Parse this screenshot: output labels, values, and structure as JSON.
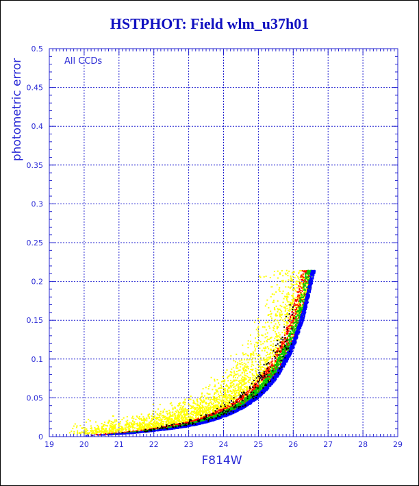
{
  "chart_data": {
    "type": "scatter",
    "title": "HSTPHOT: Field wlm_u37h01",
    "xlabel": "F814W",
    "ylabel": "photometric error",
    "annotation": "All CCDs",
    "xlim": [
      19,
      29
    ],
    "ylim": [
      0,
      0.5
    ],
    "x_ticks": [
      "19",
      "20",
      "21",
      "22",
      "23",
      "24",
      "25",
      "26",
      "27",
      "28",
      "29"
    ],
    "y_ticks": [
      "0",
      "0.05",
      "0.1",
      "0.15",
      "0.2",
      "0.25",
      "0.3",
      "0.35",
      "0.4",
      "0.45",
      "0.5"
    ],
    "grid": true,
    "error_cap": 0.215,
    "series": [
      {
        "color": "#ffff00",
        "x_range": [
          19.5,
          26.5
        ],
        "count": 3200
      },
      {
        "color": "#ff0000",
        "x_range": [
          20.0,
          26.5
        ],
        "count": 1500
      },
      {
        "color": "#00cc00",
        "x_range": [
          20.5,
          26.6
        ],
        "count": 1500
      },
      {
        "color": "#0000ff",
        "x_range": [
          20.0,
          26.6
        ],
        "count": 2400
      },
      {
        "color": "#000000",
        "x_range": [
          21.0,
          26.0
        ],
        "count": 250
      }
    ],
    "envelope": {
      "x": [
        20,
        21,
        22,
        23,
        23.5,
        24,
        24.5,
        25,
        25.5,
        26,
        26.3,
        26.6
      ],
      "y": [
        0.002,
        0.004,
        0.008,
        0.014,
        0.019,
        0.026,
        0.036,
        0.051,
        0.075,
        0.115,
        0.155,
        0.215
      ]
    }
  }
}
